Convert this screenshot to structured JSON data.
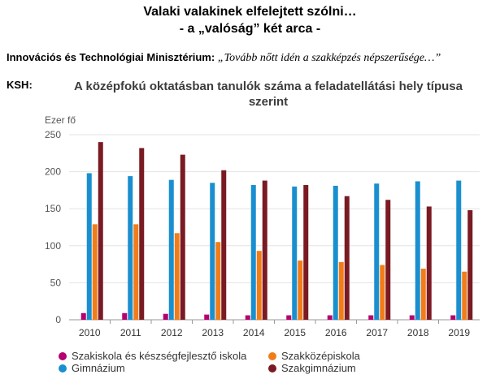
{
  "header": {
    "title_line1": "Valaki valakinek elfelejtett szólni…",
    "title_line2": "- a „valóság” két arca -",
    "ministry_label": "Innovációs és Technológiai Minisztérium:",
    "ministry_quote": "„Tovább nőtt idén a szakképzés népszerűsége…”",
    "ksh_label": "KSH:"
  },
  "chart_data": {
    "type": "bar",
    "title": "A középfokú oktatásban tanulók száma a feladatellátási hely típusa szerint",
    "ylabel": "Ezer fő",
    "xlabel": "",
    "ylim": [
      0,
      250
    ],
    "yticks": [
      0,
      50,
      100,
      150,
      200,
      250
    ],
    "grid": true,
    "legend_position": "bottom",
    "categories": [
      "2010",
      "2011",
      "2012",
      "2013",
      "2014",
      "2015",
      "2016",
      "2017",
      "2018",
      "2019"
    ],
    "series": [
      {
        "name": "Szakiskola és készségfejlesztő iskola",
        "color": "#b5006e",
        "values": [
          9,
          9,
          8,
          7,
          6,
          6,
          6,
          6,
          6,
          6
        ]
      },
      {
        "name": "Gimnázium",
        "color": "#1a8fcf",
        "values": [
          198,
          194,
          189,
          185,
          182,
          180,
          181,
          184,
          187,
          188
        ]
      },
      {
        "name": "Szakközépiskola",
        "color": "#f07d1a",
        "values": [
          129,
          129,
          117,
          105,
          93,
          80,
          78,
          74,
          69,
          65
        ]
      },
      {
        "name": "Szakgimnázium",
        "color": "#7a1a22",
        "values": [
          240,
          232,
          223,
          202,
          188,
          182,
          167,
          162,
          153,
          148
        ]
      }
    ]
  }
}
